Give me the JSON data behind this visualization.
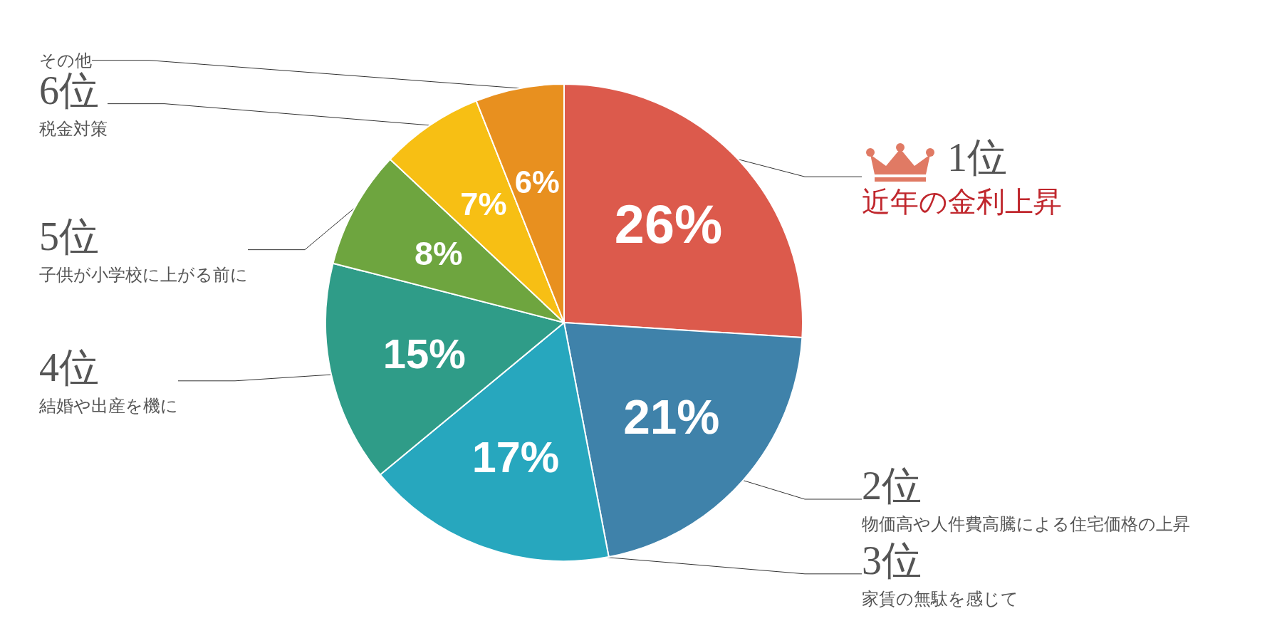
{
  "chart_data": {
    "type": "pie",
    "categories": [
      "近年の金利上昇",
      "物価高や人件費高騰による住宅価格の上昇",
      "家賃の無駄を感じて",
      "結婚や出産を機に",
      "子供が小学校に上がる前に",
      "税金対策",
      "その他"
    ],
    "annotations": [
      "1位",
      "2位",
      "3位",
      "4位",
      "5位",
      "6位"
    ],
    "values": [
      26,
      21,
      17,
      15,
      8,
      7,
      6
    ],
    "value_labels": [
      "26%",
      "21%",
      "17%",
      "15%",
      "8%",
      "7%",
      "6%"
    ],
    "colors": [
      "#dc5a4c",
      "#3f82aa",
      "#27a7be",
      "#2f9c88",
      "#6ea53f",
      "#f7bf14",
      "#e8901f"
    ],
    "legend": false
  }
}
